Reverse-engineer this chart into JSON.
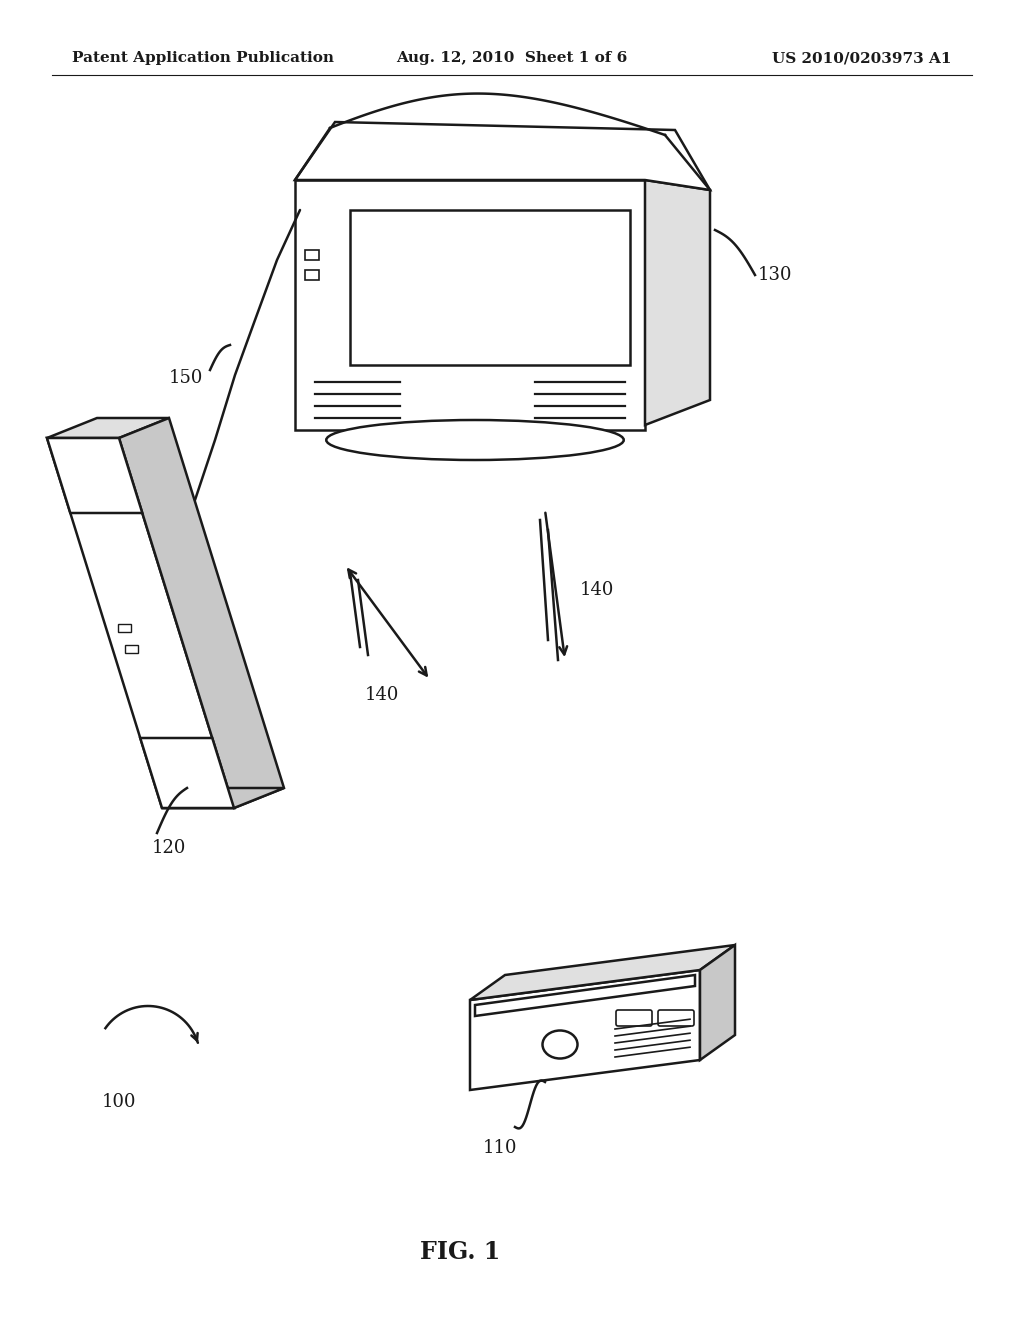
{
  "bg_color": "#ffffff",
  "text_color": "#000000",
  "header_left": "Patent Application Publication",
  "header_mid": "Aug. 12, 2010  Sheet 1 of 6",
  "header_right": "US 2010/0203973 A1",
  "fig_label": "FIG. 1",
  "line_color": "#1a1a1a",
  "gray_light": "#e0e0e0",
  "gray_mid": "#c8c8c8"
}
